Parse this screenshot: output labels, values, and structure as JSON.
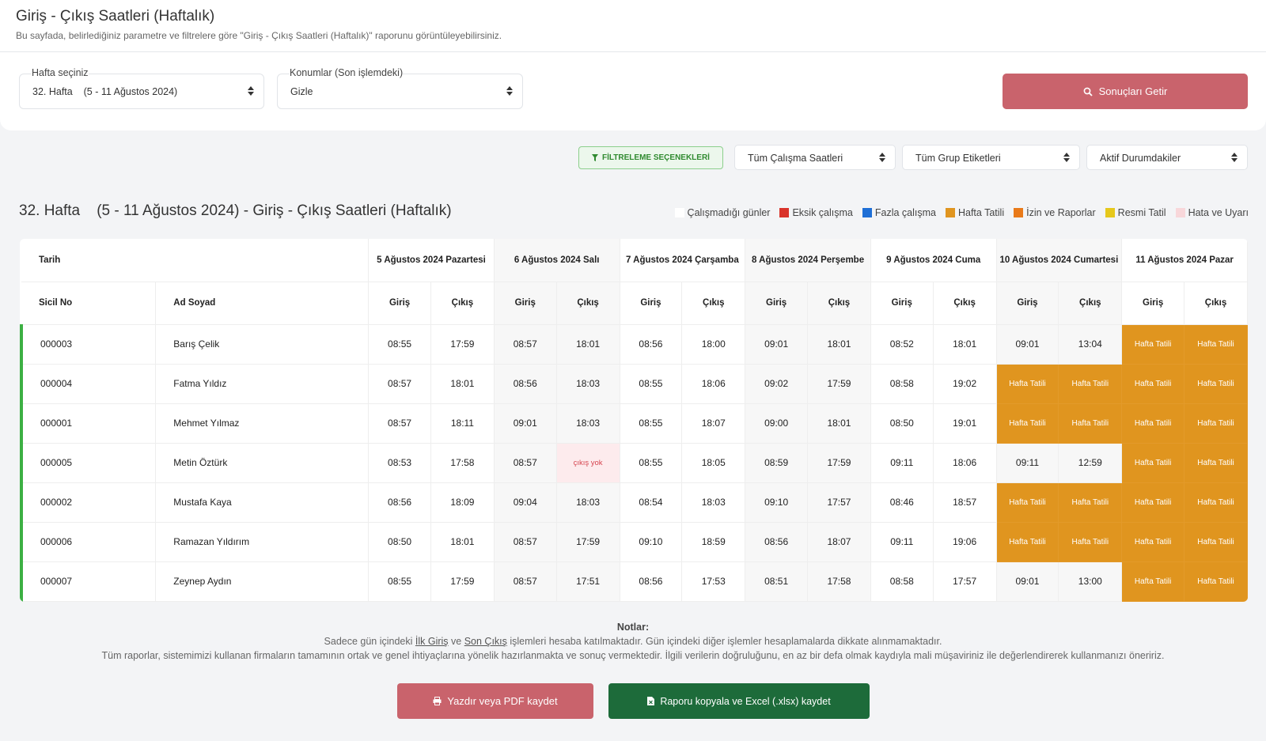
{
  "header": {
    "title": "Giriş - Çıkış Saatleri (Haftalık)",
    "subtitle": "Bu sayfada, belirlediğiniz parametre ve filtrelere göre \"Giriş - Çıkış Saatleri (Haftalık)\" raporunu görüntüleyebilirsiniz."
  },
  "form": {
    "week_label": "Hafta seçiniz",
    "week_value": "32. Hafta    (5 - 11 Ağustos 2024)",
    "locations_label": "Konumlar (Son işlemdeki)",
    "locations_value": "Gizle",
    "submit_label": "Sonuçları Getir"
  },
  "filters": {
    "filter_button": "FİLTRELEME SEÇENEKLERİ",
    "work_hours": "Tüm Çalışma Saatleri",
    "group_tags": "Tüm Grup Etiketleri",
    "status": "Aktif Durumdakiler"
  },
  "report": {
    "title": "32. Hafta    (5 - 11 Ağustos 2024) - Giriş - Çıkış Saatleri (Haftalık)"
  },
  "legend": [
    {
      "label": "Çalışmadığı günler",
      "color": "#ffffff"
    },
    {
      "label": "Eksik çalışma",
      "color": "#d9342b"
    },
    {
      "label": "Fazla çalışma",
      "color": "#1f6fd6"
    },
    {
      "label": "Hafta Tatili",
      "color": "#e0951f"
    },
    {
      "label": "İzin ve Raporlar",
      "color": "#e97a1a"
    },
    {
      "label": "Resmi Tatil",
      "color": "#e6c81c"
    },
    {
      "label": "Hata ve Uyarı",
      "color": "#f8d7da"
    }
  ],
  "table": {
    "date_header": "Tarih",
    "id_header": "Sicil No",
    "name_header": "Ad Soyad",
    "in_label": "Giriş",
    "out_label": "Çıkış",
    "days": [
      "5 Ağustos 2024 Pazartesi",
      "6 Ağustos 2024 Salı",
      "7 Ağustos 2024 Çarşamba",
      "8 Ağustos 2024 Perşembe",
      "9 Ağustos 2024 Cuma",
      "10 Ağustos 2024 Cumartesi",
      "11 Ağustos 2024 Pazar"
    ],
    "rows": [
      {
        "id": "000003",
        "name": "Barış Çelik",
        "times": [
          "08:55",
          "17:59",
          "08:57",
          "18:01",
          "08:56",
          "18:00",
          "09:01",
          "18:01",
          "08:52",
          "18:01",
          "09:01",
          "13:04",
          "Hafta Tatili",
          "Hafta Tatili"
        ]
      },
      {
        "id": "000004",
        "name": "Fatma Yıldız",
        "times": [
          "08:57",
          "18:01",
          "08:56",
          "18:03",
          "08:55",
          "18:06",
          "09:02",
          "17:59",
          "08:58",
          "19:02",
          "Hafta Tatili",
          "Hafta Tatili",
          "Hafta Tatili",
          "Hafta Tatili"
        ]
      },
      {
        "id": "000001",
        "name": "Mehmet Yılmaz",
        "times": [
          "08:57",
          "18:11",
          "09:01",
          "18:03",
          "08:55",
          "18:07",
          "09:00",
          "18:01",
          "08:50",
          "19:01",
          "Hafta Tatili",
          "Hafta Tatili",
          "Hafta Tatili",
          "Hafta Tatili"
        ]
      },
      {
        "id": "000005",
        "name": "Metin Öztürk",
        "times": [
          "08:53",
          "17:58",
          "08:57",
          "çıkış yok",
          "08:55",
          "18:05",
          "08:59",
          "17:59",
          "09:11",
          "18:06",
          "09:11",
          "12:59",
          "Hafta Tatili",
          "Hafta Tatili"
        ]
      },
      {
        "id": "000002",
        "name": "Mustafa Kaya",
        "times": [
          "08:56",
          "18:09",
          "09:04",
          "18:03",
          "08:54",
          "18:03",
          "09:10",
          "17:57",
          "08:46",
          "18:57",
          "Hafta Tatili",
          "Hafta Tatili",
          "Hafta Tatili",
          "Hafta Tatili"
        ]
      },
      {
        "id": "000006",
        "name": "Ramazan Yıldırım",
        "times": [
          "08:50",
          "18:01",
          "08:57",
          "17:59",
          "09:10",
          "18:59",
          "08:56",
          "18:07",
          "09:11",
          "19:06",
          "Hafta Tatili",
          "Hafta Tatili",
          "Hafta Tatili",
          "Hafta Tatili"
        ]
      },
      {
        "id": "000007",
        "name": "Zeynep Aydın",
        "times": [
          "08:55",
          "17:59",
          "08:57",
          "17:51",
          "08:56",
          "17:53",
          "08:51",
          "17:58",
          "08:58",
          "17:57",
          "09:01",
          "13:00",
          "Hafta Tatili",
          "Hafta Tatili"
        ]
      }
    ]
  },
  "notes": {
    "title": "Notlar:",
    "line1_a": "Sadece gün içindeki ",
    "line1_ilk": "İlk Giriş",
    "line1_b": " ve ",
    "line1_son": "Son Çıkış",
    "line1_c": " işlemleri hesaba katılmaktadır. Gün içindeki diğer işlemler hesaplamalarda dikkate alınmamaktadır.",
    "line2": "Tüm raporlar, sistemimizi kullanan firmaların tamamının ortak ve genel ihtiyaçlarına yönelik hazırlanmakta ve sonuç vermektedir. İlgili verilerin doğruluğunu, en az bir defa olmak kaydıyla mali müşaviriniz ile değerlendirerek kullanmanızı öneririz."
  },
  "actions": {
    "print_label": "Yazdır veya PDF kaydet",
    "excel_label": "Raporu kopyala ve Excel (.xlsx) kaydet"
  }
}
